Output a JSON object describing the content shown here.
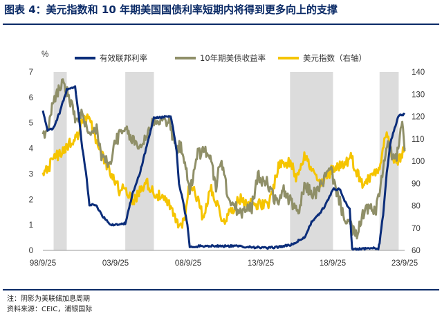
{
  "figure": {
    "title": "图表 4：美元指数和 10 年期美国国债利率短期内将得到更多向上的支撑",
    "note": "注：阴影为美联储加息周期",
    "source": "资料来源：CEIC，浦银国际"
  },
  "chart_data": {
    "type": "line",
    "title": "",
    "left_axis": {
      "unit_label": "%",
      "ylim": [
        0,
        7
      ],
      "ticks": [
        "0",
        "1",
        "2",
        "3",
        "4",
        "5",
        "6",
        "7"
      ]
    },
    "right_axis": {
      "ylim": [
        60,
        140
      ],
      "ticks": [
        "60",
        "70",
        "80",
        "90",
        "100",
        "110",
        "120",
        "130",
        "140"
      ]
    },
    "x_ticks": [
      "98/9/25",
      "03/9/25",
      "08/9/25",
      "13/9/25",
      "18/9/25",
      "23/9/25"
    ],
    "x_range": [
      "1998-09",
      "2023-12"
    ],
    "shaded_periods": [
      {
        "start": "1999-06",
        "end": "2000-05"
      },
      {
        "start": "2004-06",
        "end": "2006-06"
      },
      {
        "start": "2015-12",
        "end": "2018-12"
      },
      {
        "start": "2022-03",
        "end": "2023-07"
      }
    ],
    "legend": {
      "position": "top"
    },
    "series": [
      {
        "name": "有效联邦利率",
        "axis": "left",
        "color": "#0b2d7a",
        "points": [
          [
            "1998-09",
            5.5
          ],
          [
            "1999-01",
            4.7
          ],
          [
            "1999-06",
            4.8
          ],
          [
            "1999-11",
            5.4
          ],
          [
            "2000-05",
            6.3
          ],
          [
            "2000-12",
            6.4
          ],
          [
            "2001-03",
            5.3
          ],
          [
            "2001-06",
            4.0
          ],
          [
            "2001-09",
            3.1
          ],
          [
            "2001-12",
            1.8
          ],
          [
            "2002-06",
            1.75
          ],
          [
            "2002-11",
            1.35
          ],
          [
            "2003-06",
            1.0
          ],
          [
            "2004-06",
            1.05
          ],
          [
            "2004-12",
            2.2
          ],
          [
            "2005-06",
            3.0
          ],
          [
            "2005-12",
            4.1
          ],
          [
            "2006-06",
            5.2
          ],
          [
            "2007-08",
            5.25
          ],
          [
            "2007-10",
            4.8
          ],
          [
            "2008-01",
            3.9
          ],
          [
            "2008-03",
            2.6
          ],
          [
            "2008-06",
            2.0
          ],
          [
            "2008-10",
            1.0
          ],
          [
            "2008-12",
            0.15
          ],
          [
            "2010-06",
            0.18
          ],
          [
            "2012-06",
            0.16
          ],
          [
            "2014-06",
            0.09
          ],
          [
            "2015-12",
            0.2
          ],
          [
            "2016-12",
            0.5
          ],
          [
            "2017-06",
            1.1
          ],
          [
            "2017-12",
            1.4
          ],
          [
            "2018-06",
            1.8
          ],
          [
            "2018-12",
            2.4
          ],
          [
            "2019-06",
            2.4
          ],
          [
            "2019-09",
            2.0
          ],
          [
            "2020-02",
            1.6
          ],
          [
            "2020-04",
            0.05
          ],
          [
            "2021-06",
            0.08
          ],
          [
            "2022-02",
            0.08
          ],
          [
            "2022-03",
            0.3
          ],
          [
            "2022-06",
            1.4
          ],
          [
            "2022-09",
            3.0
          ],
          [
            "2022-12",
            4.2
          ],
          [
            "2023-03",
            4.7
          ],
          [
            "2023-07",
            5.3
          ],
          [
            "2023-12",
            5.33
          ]
        ]
      },
      {
        "name": "10年期美债收益率",
        "axis": "left",
        "color": "#8f8f68",
        "points": [
          [
            "1998-09",
            4.7
          ],
          [
            "1998-12",
            4.5
          ],
          [
            "1999-06",
            5.9
          ],
          [
            "2000-01",
            6.6
          ],
          [
            "2000-06",
            6.1
          ],
          [
            "2000-12",
            5.2
          ],
          [
            "2001-06",
            5.3
          ],
          [
            "2001-11",
            4.4
          ],
          [
            "2002-06",
            4.8
          ],
          [
            "2002-10",
            3.7
          ],
          [
            "2003-06",
            3.3
          ],
          [
            "2003-09",
            4.3
          ],
          [
            "2004-06",
            4.7
          ],
          [
            "2005-06",
            4.0
          ],
          [
            "2006-06",
            5.1
          ],
          [
            "2007-06",
            5.1
          ],
          [
            "2007-12",
            4.1
          ],
          [
            "2008-06",
            4.0
          ],
          [
            "2008-12",
            2.2
          ],
          [
            "2009-06",
            3.8
          ],
          [
            "2010-04",
            3.9
          ],
          [
            "2010-10",
            2.5
          ],
          [
            "2011-02",
            3.6
          ],
          [
            "2011-09",
            1.9
          ],
          [
            "2012-07",
            1.45
          ],
          [
            "2013-04",
            1.7
          ],
          [
            "2013-09",
            2.9
          ],
          [
            "2014-06",
            2.6
          ],
          [
            "2015-01",
            1.8
          ],
          [
            "2015-06",
            2.4
          ],
          [
            "2016-07",
            1.4
          ],
          [
            "2016-12",
            2.5
          ],
          [
            "2017-09",
            2.2
          ],
          [
            "2018-10",
            3.2
          ],
          [
            "2019-08",
            1.5
          ],
          [
            "2020-03",
            0.9
          ],
          [
            "2020-08",
            0.55
          ],
          [
            "2021-03",
            1.7
          ],
          [
            "2021-12",
            1.5
          ],
          [
            "2022-06",
            3.2
          ],
          [
            "2022-10",
            4.2
          ],
          [
            "2023-04",
            3.4
          ],
          [
            "2023-10",
            4.9
          ],
          [
            "2023-12",
            3.9
          ]
        ]
      },
      {
        "name": "美元指数（右轴）",
        "axis": "right",
        "color": "#f5c400",
        "points": [
          [
            "1998-09",
            93
          ],
          [
            "1999-06",
            101
          ],
          [
            "2000-06",
            107
          ],
          [
            "2001-01",
            110
          ],
          [
            "2001-07",
            119
          ],
          [
            "2002-01",
            118
          ],
          [
            "2002-06",
            109
          ],
          [
            "2003-01",
            100
          ],
          [
            "2003-06",
            95
          ],
          [
            "2004-01",
            87
          ],
          [
            "2004-06",
            89
          ],
          [
            "2004-12",
            81
          ],
          [
            "2005-11",
            91
          ],
          [
            "2006-06",
            86
          ],
          [
            "2007-06",
            81
          ],
          [
            "2008-03",
            71
          ],
          [
            "2008-07",
            73
          ],
          [
            "2008-11",
            87
          ],
          [
            "2009-03",
            89
          ],
          [
            "2009-11",
            75
          ],
          [
            "2010-06",
            88
          ],
          [
            "2011-04",
            73
          ],
          [
            "2012-06",
            83
          ],
          [
            "2013-06",
            81
          ],
          [
            "2014-06",
            80
          ],
          [
            "2015-03",
            99
          ],
          [
            "2016-01",
            99
          ],
          [
            "2016-05",
            93
          ],
          [
            "2016-12",
            103
          ],
          [
            "2017-06",
            96
          ],
          [
            "2018-02",
            89
          ],
          [
            "2018-12",
            97
          ],
          [
            "2019-10",
            99
          ],
          [
            "2020-03",
            102
          ],
          [
            "2020-12",
            90
          ],
          [
            "2021-06",
            92
          ],
          [
            "2022-03",
            98
          ],
          [
            "2022-09",
            114
          ],
          [
            "2023-01",
            102
          ],
          [
            "2023-07",
            100
          ],
          [
            "2023-12",
            106
          ]
        ]
      }
    ]
  }
}
